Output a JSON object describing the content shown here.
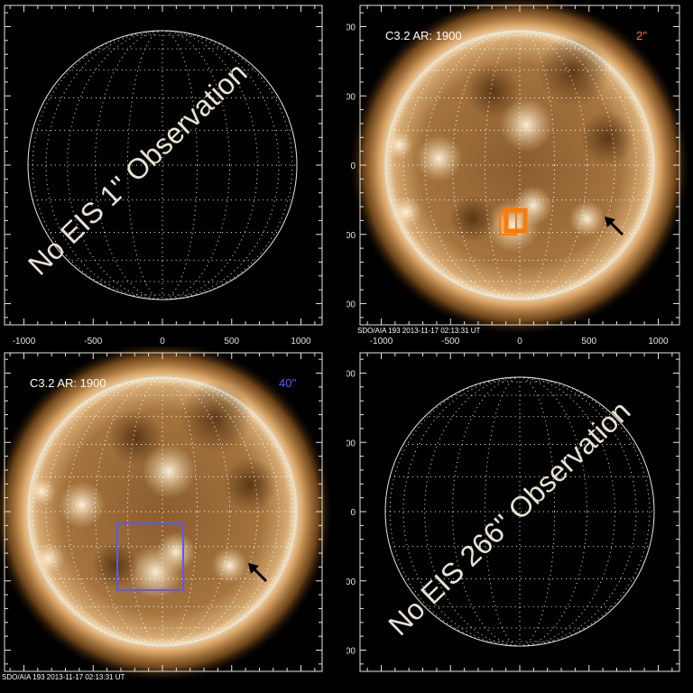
{
  "colors": {
    "axis": "#e8e4d4",
    "orange_box": "#ff7a00",
    "blue_box": "#5a5aff",
    "sun_disk": "#9a6a38",
    "limb": "#f3e2bf"
  },
  "axis": {
    "ticks": [
      -1000,
      -500,
      0,
      500,
      1000
    ],
    "tick_labels": [
      "-1000",
      "-500",
      "0",
      "500",
      "1000"
    ],
    "range": [
      -1150,
      1150
    ]
  },
  "panels": [
    {
      "id": "top-left",
      "has_image": false,
      "watermark": "No EIS 1'' Observation",
      "x_labels": true
    },
    {
      "id": "top-right",
      "has_image": true,
      "flare_label": "C3.2 AR: 1900",
      "fov_label": "2''",
      "fov_color": "#ff7a00",
      "caption": "SDO/AIA 193   2013-11-17 02:13:31 UT",
      "x_labels": true,
      "icons": [
        "arrow-icon"
      ]
    },
    {
      "id": "bottom-left",
      "has_image": true,
      "flare_label": "C3.2 AR: 1900",
      "fov_label": "40''",
      "fov_color": "#5a5aff",
      "caption": "SDO/AIA 193   2013-11-17 02:13:31 UT",
      "x_labels": false,
      "icons": [
        "arrow-icon"
      ]
    },
    {
      "id": "bottom-right",
      "has_image": false,
      "watermark": "No EIS 266'' Observation",
      "x_labels": false
    }
  ]
}
